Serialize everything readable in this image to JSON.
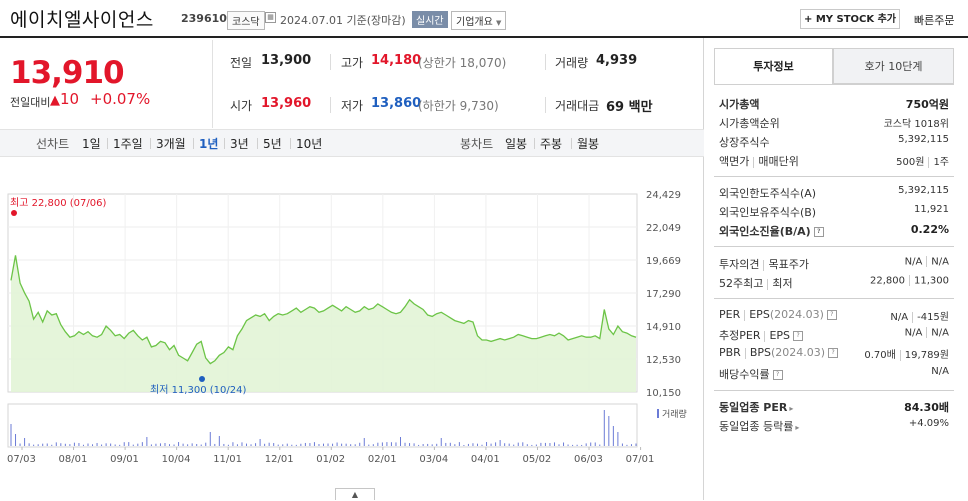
{
  "header": {
    "stock_name": "에이치엘사이언스",
    "stock_code": "239610",
    "market_badge": "코스닥",
    "date_text": "2024.07.01 기준(장마감)",
    "realtime_badge": "실시간",
    "company_info_label": "기업개요",
    "mystock_label": "MY STOCK 추가",
    "quick_order_label": "빠른주문"
  },
  "quote": {
    "price": "13,910",
    "change_label": "전일대비",
    "change_value": "10",
    "change_percent": "+0.07%",
    "prev_close_label": "전일",
    "prev_close": "13,900",
    "high_label": "고가",
    "high": "14,180",
    "upper_limit": "(상한가 18,070)",
    "volume_label": "거래량",
    "volume": "4,939",
    "open_label": "시가",
    "open": "13,960",
    "low_label": "저가",
    "low": "13,860",
    "lower_limit": "(하한가 9,730)",
    "amount_label": "거래대금",
    "amount": "69 백만"
  },
  "periods": {
    "line_label": "선차트",
    "line_items": [
      "1일",
      "1주일",
      "3개월",
      "1년",
      "3년",
      "5년",
      "10년"
    ],
    "active": "1년",
    "candle_label": "봉차트",
    "candle_items": [
      "일봉",
      "주봉",
      "월봉"
    ]
  },
  "chart_data": {
    "type": "area",
    "x_ticks": [
      "07/03",
      "08/01",
      "09/01",
      "10/04",
      "11/01",
      "12/01",
      "01/02",
      "02/01",
      "03/04",
      "04/01",
      "05/02",
      "06/03",
      "07/01"
    ],
    "y_ticks": [
      "24,429",
      "22,049",
      "19,669",
      "17,290",
      "14,910",
      "12,530",
      "10,150"
    ],
    "ylim": [
      10150,
      24429
    ],
    "high_annotation": "최고 22,800 (07/06)",
    "low_annotation": "최저 11,300 (10/24)",
    "volume_label": "거래량",
    "price_series": [
      18200,
      20000,
      18000,
      17300,
      16700,
      15400,
      15900,
      15200,
      16000,
      15700,
      15800,
      15000,
      14500,
      14100,
      14200,
      14500,
      14300,
      14500,
      14200,
      14100,
      14300,
      14900,
      14600,
      14200,
      14300,
      14000,
      14400,
      14600,
      14200,
      13900,
      14100,
      13400,
      13500,
      13800,
      13700,
      13200,
      13500,
      12800,
      12600,
      12400,
      13000,
      13600,
      13800,
      12600,
      12200,
      12400,
      12800,
      13000,
      13400,
      13200,
      14200,
      14700,
      15300,
      15500,
      15700,
      15600,
      15800,
      15300,
      15600,
      15800,
      15700,
      15800,
      16000,
      16200,
      15900,
      16100,
      16300,
      16200,
      15900,
      16000,
      16200,
      16400,
      16200,
      16000,
      16300,
      16100,
      15900,
      16000,
      16300,
      16100,
      16200,
      16500,
      16300,
      16100,
      15900,
      15800,
      15900,
      16300,
      16800,
      16500,
      16300,
      16100,
      15700,
      15600,
      15800,
      15900,
      15700,
      15500,
      15300,
      15200,
      15100,
      15300,
      15200,
      14200,
      13900,
      13900,
      13800,
      13900,
      14000,
      13900,
      14000,
      14100,
      14300,
      14200,
      14100,
      14000,
      14000,
      14100,
      14200,
      14300,
      14200,
      14400,
      14200,
      13900,
      14000,
      14100,
      14200,
      14100,
      14100,
      14200,
      14000,
      16100,
      14700,
      14300,
      14900,
      14500,
      14400,
      14200,
      14100
    ]
  },
  "invest_info": {
    "tab_active": "투자정보",
    "tab_other": "호가 10단계",
    "market_cap_label": "시가총액",
    "market_cap": "750억원",
    "market_cap_rank_label": "시가총액순위",
    "market_cap_rank": "코스닥 1018위",
    "listed_shares_label": "상장주식수",
    "listed_shares": "5,392,115",
    "face_value_label": "액면가",
    "trade_unit_label": "매매단위",
    "face_value": "500원",
    "trade_unit": "1주",
    "foreign_limit_label": "외국인한도주식수(A)",
    "foreign_limit": "5,392,115",
    "foreign_hold_label": "외국인보유주식수(B)",
    "foreign_hold": "11,921",
    "foreign_ratio_label": "외국인소진율(B/A)",
    "foreign_ratio": "0.22%",
    "opinion_label": "투자의견",
    "target_label": "목표주가",
    "opinion": "N/A",
    "target": "N/A",
    "week52_high_label": "52주최고",
    "week52_low_label": "최저",
    "week52_high": "22,800",
    "week52_low": "11,300",
    "per_label": "PER",
    "eps_label": "EPS",
    "eps_period": "(2024.03)",
    "per": "N/A",
    "eps": "-415원",
    "est_per_label": "추정PER",
    "est_eps_label": "EPS",
    "est_per": "N/A",
    "est_eps": "N/A",
    "pbr_label": "PBR",
    "bps_label": "BPS",
    "bps_period": "(2024.03)",
    "pbr": "0.70배",
    "bps": "19,789원",
    "dividend_label": "배당수익률",
    "dividend": "N/A",
    "sector_per_label": "동일업종 PER",
    "sector_per": "84.30배",
    "sector_change_label": "동일업종 등락률",
    "sector_change": "+4.09%"
  }
}
